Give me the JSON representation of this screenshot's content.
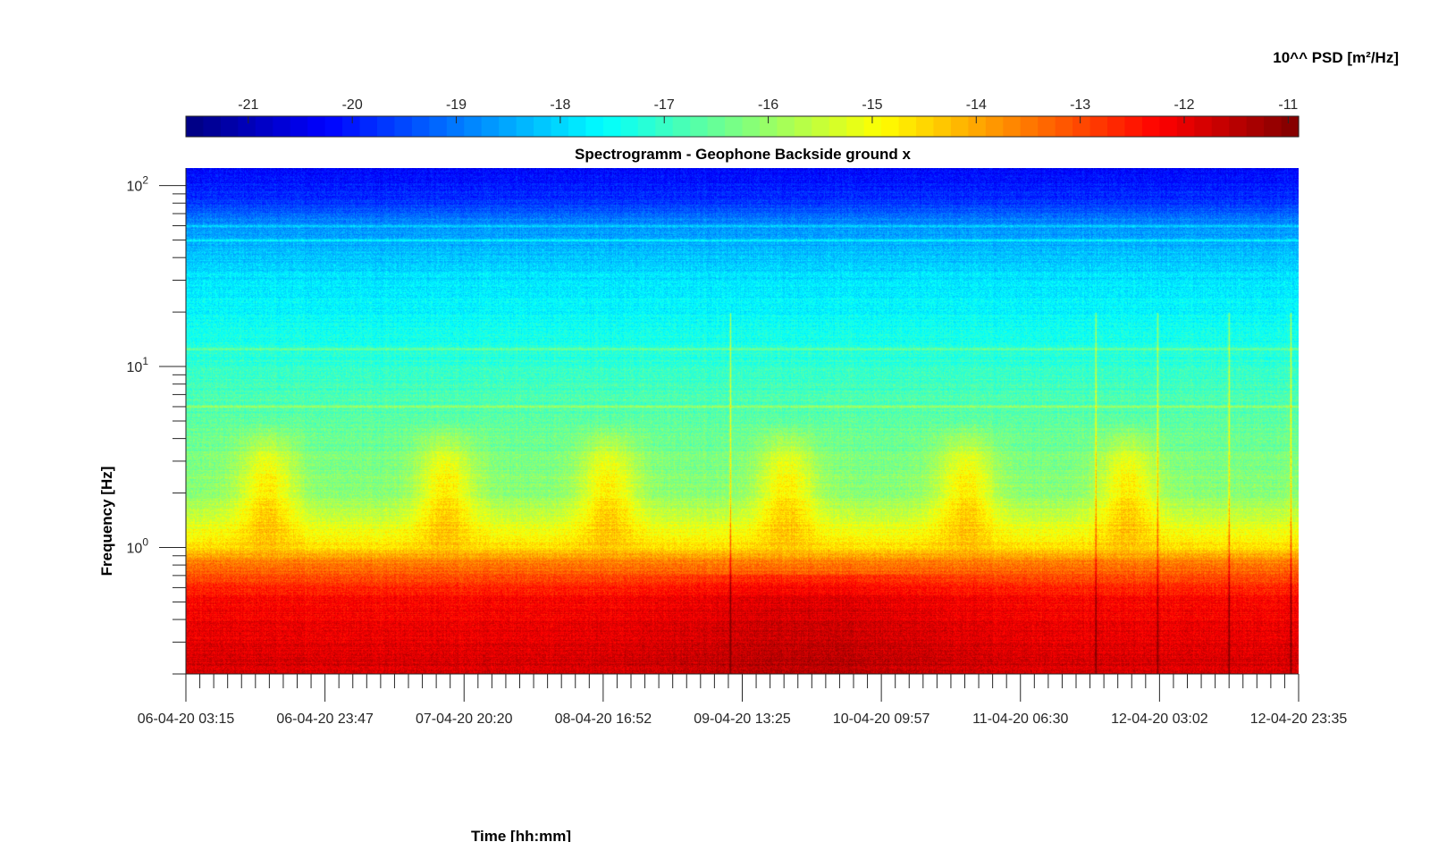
{
  "chart_data": {
    "type": "heatmap",
    "title": "Spectrogramm - Geophone Backside ground x",
    "xlabel": "Time [hh:mm]",
    "ylabel": "Frequency [Hz]",
    "colorbar": {
      "label": "10^^ PSD [m²/Hz]",
      "ticks": [
        "-21",
        "-20",
        "-19",
        "-18",
        "-17",
        "-16",
        "-15",
        "-14",
        "-13",
        "-12",
        "-11"
      ],
      "range": [
        -21.6,
        -10.9
      ],
      "colormap": "jet",
      "placement": "top"
    },
    "x_tick_labels": [
      "06-04-20 03:15",
      "06-04-20 23:47",
      "07-04-20 20:20",
      "08-04-20 16:52",
      "09-04-20 13:25",
      "10-04-20 09:57",
      "11-04-20 06:30",
      "12-04-20 03:02",
      "12-04-20 23:35"
    ],
    "y_axis": {
      "scale": "log",
      "range_hz": [
        0.2,
        125
      ],
      "ticks": [
        {
          "base": "10",
          "exp": "0"
        },
        {
          "base": "10",
          "exp": "1"
        },
        {
          "base": "10",
          "exp": "2"
        }
      ]
    },
    "grid": false,
    "features": {
      "narrowband_lines_hz": [
        6,
        12.5,
        50,
        60
      ],
      "daily_activity_days": [
        0.5,
        1.6,
        2.6,
        3.7,
        4.8,
        5.8
      ],
      "transient_events_days": [
        3.35,
        5.6,
        5.98,
        6.42,
        6.8
      ]
    }
  }
}
